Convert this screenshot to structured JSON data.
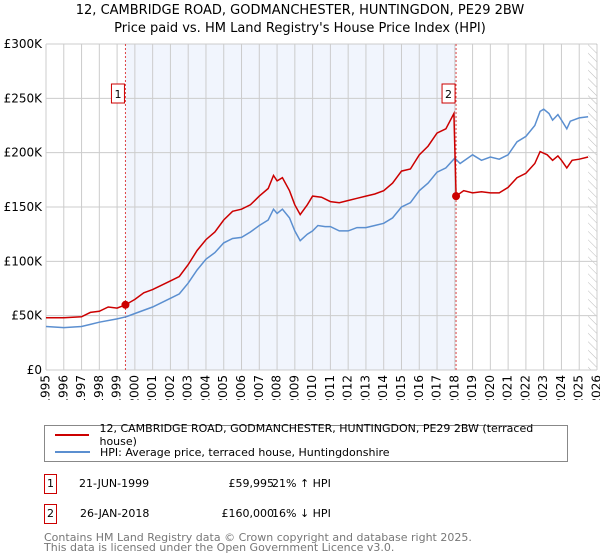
{
  "title": "12, CAMBRIDGE ROAD, GODMANCHESTER, HUNTINGDON, PE29 2BW",
  "subtitle": "Price paid vs. HM Land Registry's House Price Index (HPI)",
  "chart_data": {
    "type": "line",
    "title": "12, CAMBRIDGE ROAD, GODMANCHESTER, HUNTINGDON, PE29 2BW",
    "subtitle": "Price paid vs. HM Land Registry's House Price Index (HPI)",
    "xlim": [
      1995,
      2026
    ],
    "ylim": [
      0,
      300000
    ],
    "y_ticks": [
      {
        "v": 0,
        "label": "£0"
      },
      {
        "v": 50000,
        "label": "£50K"
      },
      {
        "v": 100000,
        "label": "£100K"
      },
      {
        "v": 150000,
        "label": "£150K"
      },
      {
        "v": 200000,
        "label": "£200K"
      },
      {
        "v": 250000,
        "label": "£250K"
      },
      {
        "v": 300000,
        "label": "£300K"
      }
    ],
    "x_ticks": [
      "1995",
      "1996",
      "1997",
      "1998",
      "1999",
      "2000",
      "2001",
      "2002",
      "2003",
      "2004",
      "2005",
      "2006",
      "2007",
      "2008",
      "2009",
      "2010",
      "2011",
      "2012",
      "2013",
      "2014",
      "2015",
      "2016",
      "2017",
      "2018",
      "2019",
      "2020",
      "2021",
      "2022",
      "2023",
      "2024",
      "2025",
      "2026"
    ],
    "grid": true,
    "series": [
      {
        "name": "12, CAMBRIDGE ROAD, GODMANCHESTER, HUNTINGDON, PE29 2BW (terraced house)",
        "color": "#cc0000",
        "x": [
          1995,
          1996,
          1997,
          1997.5,
          1998,
          1998.5,
          1999,
          1999.47,
          2000,
          2000.5,
          2001,
          2002,
          2002.5,
          2003,
          2003.5,
          2004,
          2004.5,
          2005,
          2005.5,
          2006,
          2006.5,
          2007,
          2007.5,
          2007.8,
          2008,
          2008.3,
          2008.7,
          2009,
          2009.3,
          2009.7,
          2010,
          2010.5,
          2011,
          2011.5,
          2012,
          2012.5,
          2013,
          2013.5,
          2014,
          2014.5,
          2015,
          2015.5,
          2016,
          2016.5,
          2017,
          2017.5,
          2017.95,
          2018.07,
          2018.5,
          2019,
          2019.5,
          2020,
          2020.5,
          2021,
          2021.5,
          2022,
          2022.5,
          2022.8,
          2023.2,
          2023.5,
          2023.8,
          2024,
          2024.3,
          2024.6,
          2025,
          2025.5
        ],
        "y": [
          48000,
          48000,
          49000,
          53000,
          54000,
          58000,
          57000,
          59995,
          65000,
          71000,
          74000,
          82000,
          86000,
          97000,
          110000,
          120000,
          127000,
          138000,
          146000,
          148000,
          152000,
          160000,
          167000,
          179000,
          174000,
          177000,
          165000,
          152000,
          143000,
          152000,
          160000,
          159000,
          155000,
          154000,
          156000,
          158000,
          160000,
          162000,
          165000,
          172000,
          183000,
          185000,
          198000,
          206000,
          218000,
          222000,
          236000,
          160000,
          165000,
          163000,
          164000,
          163000,
          163000,
          168000,
          177000,
          181000,
          190000,
          201000,
          198000,
          193000,
          197000,
          193000,
          186000,
          193000,
          194000,
          196000
        ]
      },
      {
        "name": "HPI: Average price, terraced house, Huntingdonshire",
        "color": "#5b8fd0",
        "x": [
          1995,
          1996,
          1997,
          1997.5,
          1998,
          1999,
          1999.5,
          2000,
          2001,
          2002,
          2002.5,
          2003,
          2003.5,
          2004,
          2004.5,
          2005,
          2005.5,
          2006,
          2006.5,
          2007,
          2007.5,
          2007.8,
          2008,
          2008.3,
          2008.7,
          2009,
          2009.3,
          2009.7,
          2010,
          2010.3,
          2010.7,
          2011,
          2011.5,
          2012,
          2012.5,
          2013,
          2013.5,
          2014,
          2014.5,
          2015,
          2015.5,
          2016,
          2016.5,
          2017,
          2017.5,
          2018,
          2018.3,
          2019,
          2019.5,
          2020,
          2020.5,
          2021,
          2021.5,
          2022,
          2022.5,
          2022.8,
          2023,
          2023.3,
          2023.5,
          2023.8,
          2024,
          2024.3,
          2024.5,
          2025,
          2025.5
        ],
        "y": [
          40000,
          39000,
          40000,
          42000,
          44000,
          47000,
          49000,
          52000,
          58000,
          66000,
          70000,
          80000,
          92000,
          102000,
          108000,
          117000,
          121000,
          122000,
          127000,
          133000,
          138000,
          148000,
          144000,
          148000,
          140000,
          128000,
          119000,
          125000,
          128000,
          133000,
          132000,
          132000,
          128000,
          128000,
          131000,
          131000,
          133000,
          135000,
          140000,
          150000,
          154000,
          165000,
          172000,
          182000,
          186000,
          195000,
          190000,
          198000,
          193000,
          196000,
          194000,
          198000,
          210000,
          215000,
          225000,
          238000,
          240000,
          236000,
          230000,
          235000,
          230000,
          222000,
          229000,
          232000,
          233000
        ]
      }
    ],
    "annotations": [
      {
        "label": "1",
        "x": 1999.47,
        "y": 59995
      },
      {
        "label": "2",
        "x": 2018.07,
        "y": 160000
      }
    ],
    "shaded_range": [
      1999.47,
      2018.07
    ],
    "hatched_from": 2025.5,
    "legend_position": "bottom"
  },
  "legend": [
    {
      "label": "12, CAMBRIDGE ROAD, GODMANCHESTER, HUNTINGDON, PE29 2BW (terraced house)",
      "color": "#cc0000"
    },
    {
      "label": "HPI: Average price, terraced house, Huntingdonshire",
      "color": "#5b8fd0"
    }
  ],
  "sales": [
    {
      "num": "1",
      "date": "21-JUN-1999",
      "price": "£59,995",
      "hpi": "21% ↑ HPI"
    },
    {
      "num": "2",
      "date": "26-JAN-2018",
      "price": "£160,000",
      "hpi": "16% ↓ HPI"
    }
  ],
  "footer": [
    "Contains HM Land Registry data © Crown copyright and database right 2025.",
    "This data is licensed under the Open Government Licence v3.0."
  ]
}
